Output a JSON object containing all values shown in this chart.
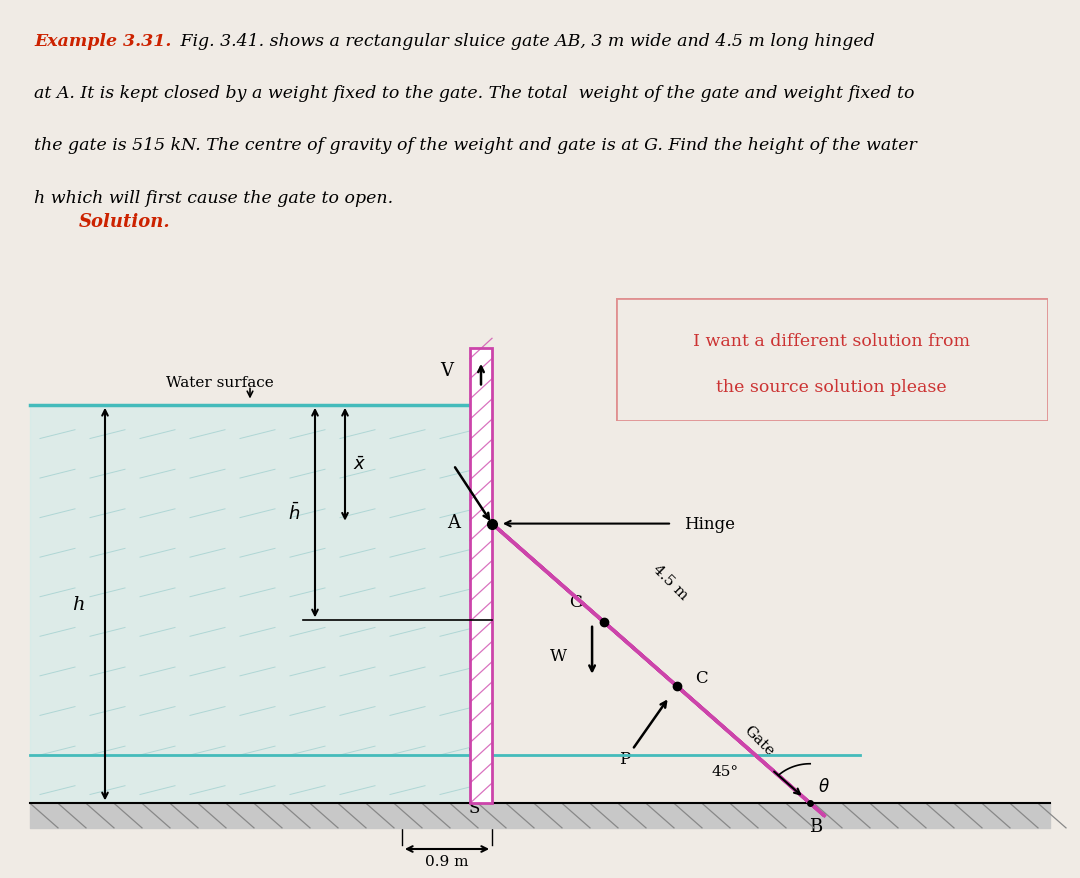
{
  "bg_color": "#f0ebe5",
  "header_bg": "#f5e8e0",
  "diagram_bg": "#ffffff",
  "title_bold": "Example 3.31.",
  "title_rest": " Fig. 3.41. shows a rectangular sluice gate AB, 3 m wide and 4.5 m long hinged",
  "line2": "at A. It is kept closed by a weight fixed to the gate. The total  weight of the gate and weight fixed to",
  "line3": "the gate is 515 kN. The centre of gravity of the weight and gate is at G. Find the height of the water",
  "line4": "h which will first cause the gate to open.",
  "solution_text": "Solution.",
  "note_line1": "I want a different solution from",
  "note_line2": "the source solution please",
  "note_bg": "#fde8e8",
  "note_border": "#e09090",
  "note_text_color": "#cc3333",
  "gate_color": "#cc44aa",
  "water_line_color": "#44bbbb",
  "ground_color": "#aaaaaa",
  "dim_color": "#000000",
  "text_color": "#000000",
  "title_color": "#cc2200",
  "solution_color": "#cc2200"
}
